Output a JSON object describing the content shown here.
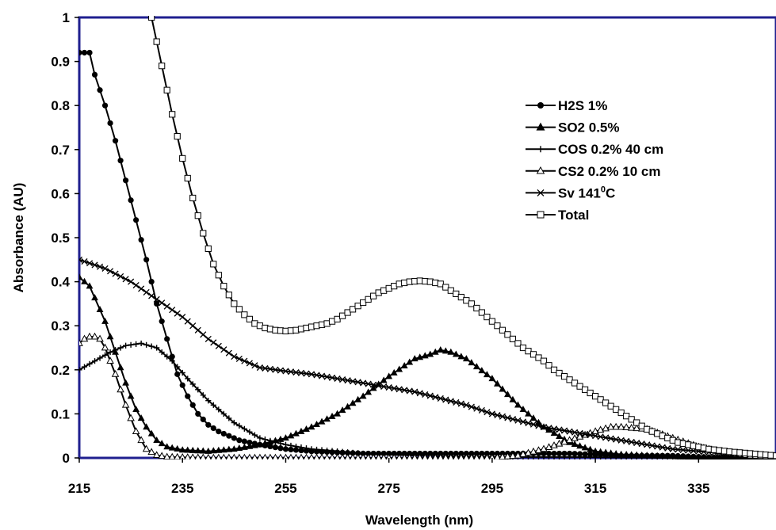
{
  "chart_data": {
    "type": "line",
    "xlabel": "Wavelength (nm)",
    "ylabel": "Absorbance (AU)",
    "xlim": [
      215,
      350
    ],
    "ylim": [
      0,
      1
    ],
    "x_ticks": [
      "215",
      "235",
      "255",
      "275",
      "295",
      "315",
      "335"
    ],
    "y_ticks": [
      "0",
      "0.1",
      "0.2",
      "0.3",
      "0.4",
      "0.5",
      "0.6",
      "0.7",
      "0.8",
      "0.9",
      "1"
    ],
    "grid": false,
    "legend_position": "right",
    "colors": {
      "plot_frame": "#1f1f8f",
      "series": "#000000"
    },
    "series": [
      {
        "name": "H2S 1%",
        "marker": "filled-circle",
        "x": [
          215,
          216,
          217,
          218,
          220,
          222,
          224,
          226,
          228,
          230,
          232,
          234,
          236,
          238,
          240,
          242,
          244,
          246,
          248,
          250,
          255,
          260,
          270,
          280,
          290,
          300,
          310,
          320,
          330,
          340,
          350
        ],
        "y": [
          0.92,
          0.92,
          0.92,
          0.87,
          0.8,
          0.72,
          0.63,
          0.54,
          0.45,
          0.35,
          0.27,
          0.19,
          0.14,
          0.1,
          0.075,
          0.06,
          0.05,
          0.04,
          0.035,
          0.03,
          0.02,
          0.015,
          0.01,
          0.01,
          0.01,
          0.01,
          0.01,
          0.005,
          0.005,
          0.0,
          0.0
        ]
      },
      {
        "name": "SO2 0.5%",
        "marker": "filled-triangle",
        "x": [
          215,
          217,
          220,
          222,
          224,
          226,
          228,
          230,
          232,
          235,
          240,
          245,
          250,
          255,
          260,
          265,
          270,
          275,
          280,
          283,
          285,
          287,
          290,
          295,
          300,
          305,
          310,
          315,
          320,
          330,
          340,
          350
        ],
        "y": [
          0.41,
          0.39,
          0.31,
          0.24,
          0.17,
          0.11,
          0.07,
          0.04,
          0.025,
          0.018,
          0.015,
          0.02,
          0.03,
          0.045,
          0.07,
          0.1,
          0.14,
          0.185,
          0.225,
          0.235,
          0.245,
          0.24,
          0.225,
          0.18,
          0.12,
          0.07,
          0.035,
          0.015,
          0.008,
          0.003,
          0.0,
          0.0
        ]
      },
      {
        "name": "COS 0.2% 40 cm",
        "marker": "plus",
        "x": [
          215,
          218,
          221,
          224,
          227,
          230,
          233,
          236,
          240,
          245,
          250,
          255,
          260,
          270,
          280,
          290,
          300,
          310,
          320,
          330,
          340,
          350
        ],
        "y": [
          0.2,
          0.22,
          0.24,
          0.255,
          0.26,
          0.25,
          0.22,
          0.18,
          0.13,
          0.08,
          0.045,
          0.03,
          0.02,
          0.01,
          0.005,
          0.003,
          0.002,
          0.002,
          0.001,
          0.0,
          0.0,
          0.0
        ]
      },
      {
        "name": "CS2 0.2% 10 cm",
        "marker": "open-triangle",
        "x": [
          215,
          216,
          217,
          218,
          219,
          220,
          222,
          224,
          226,
          228,
          230,
          232,
          240,
          260,
          280,
          295,
          300,
          305,
          310,
          315,
          318,
          320,
          325,
          330,
          335,
          340,
          345,
          350
        ],
        "y": [
          0.26,
          0.27,
          0.275,
          0.275,
          0.27,
          0.25,
          0.19,
          0.12,
          0.06,
          0.02,
          0.006,
          0.002,
          0.0,
          0.0,
          0.0,
          0.0,
          0.005,
          0.02,
          0.04,
          0.06,
          0.07,
          0.07,
          0.065,
          0.045,
          0.025,
          0.012,
          0.005,
          0.002
        ]
      },
      {
        "name": "Sv 141⁰C",
        "label_main": "Sv 141",
        "label_sup": "0",
        "label_end": "C",
        "marker": "x",
        "x": [
          215,
          220,
          225,
          230,
          235,
          240,
          245,
          250,
          255,
          260,
          265,
          270,
          275,
          280,
          285,
          290,
          295,
          300,
          305,
          310,
          315,
          320,
          325,
          330,
          340,
          350
        ],
        "y": [
          0.45,
          0.43,
          0.4,
          0.36,
          0.32,
          0.27,
          0.23,
          0.205,
          0.197,
          0.19,
          0.18,
          0.17,
          0.16,
          0.15,
          0.135,
          0.12,
          0.1,
          0.085,
          0.07,
          0.06,
          0.05,
          0.04,
          0.03,
          0.02,
          0.01,
          0.005
        ]
      },
      {
        "name": "Total",
        "marker": "open-square",
        "x": [
          229,
          231,
          233,
          235,
          237,
          239,
          241,
          243,
          245,
          247,
          249,
          251,
          253,
          255,
          257,
          259,
          261,
          263,
          265,
          267,
          269,
          271,
          273,
          275,
          277,
          279,
          281,
          283,
          285,
          287,
          289,
          291,
          293,
          295,
          297,
          299,
          301,
          303,
          305,
          307,
          309,
          311,
          313,
          315,
          317,
          319,
          321,
          323,
          325,
          327,
          329,
          331,
          333,
          335,
          337,
          339,
          341,
          343,
          345,
          347,
          349,
          350
        ],
        "y": [
          1.0,
          0.89,
          0.78,
          0.68,
          0.59,
          0.51,
          0.44,
          0.39,
          0.35,
          0.325,
          0.305,
          0.295,
          0.29,
          0.288,
          0.29,
          0.295,
          0.3,
          0.305,
          0.315,
          0.33,
          0.345,
          0.36,
          0.375,
          0.385,
          0.395,
          0.4,
          0.402,
          0.4,
          0.395,
          0.38,
          0.365,
          0.35,
          0.33,
          0.31,
          0.29,
          0.27,
          0.25,
          0.235,
          0.22,
          0.2,
          0.185,
          0.17,
          0.155,
          0.14,
          0.125,
          0.11,
          0.095,
          0.08,
          0.065,
          0.055,
          0.045,
          0.035,
          0.03,
          0.025,
          0.02,
          0.017,
          0.014,
          0.012,
          0.01,
          0.008,
          0.006,
          0.005
        ]
      }
    ]
  }
}
